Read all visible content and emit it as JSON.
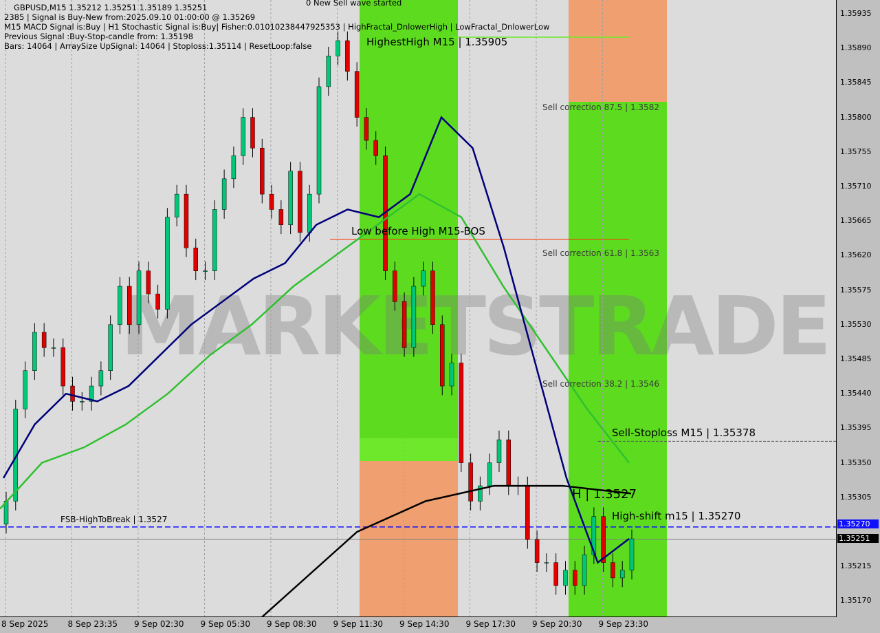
{
  "header": {
    "symbol_line": "GBPUSD,M15  1.35212 1.35251 1.35189 1.35251",
    "line2": "2385 | Signal is Buy-New from:2025.09.10 01:00:00 @ 1.35269",
    "line3": "M15 MACD Signal is:Buy | H1 Stochastic Signal is:Buy| Fisher:0.01010238447925353 | HighFractal_DnlowerHigh | LowFractal_DnlowerLow",
    "line4": "Previous Signal :Buy-Stop-candle from: 1.35198",
    "line5": "Bars: 14064 | ArraySize UpSignal: 14064 | Stoploss:1.35114 | ResetLoop:false",
    "top_note": "0 New Sell wave started"
  },
  "annotations": {
    "highest": "HighestHigh   M15 | 1.35905",
    "lbh": "Low before High   M15-BOS",
    "sc875": "Sell correction 87.5 | 1.3582",
    "sc618": "Sell correction 61.8 | 1.3563",
    "sc382": "Sell correction 38.2 | 1.3546",
    "stoploss": "Sell-Stoploss M15 | 1.35378",
    "highshift": "High-shift m15 | 1.35270",
    "fsb": "FSB-HighToBreak | 1.3527",
    "h": "H | 1.3527"
  },
  "watermark": "MARKETSTRADE",
  "colors": {
    "bull": "#00c878",
    "bear": "#e00000",
    "zone_green": "#5ddc1f",
    "zone_orange": "#f0a070",
    "ma_fast": "#00007a",
    "ma_mid": "#30c030",
    "ma_slow": "#000000"
  },
  "price_tags": {
    "line": "1.35270",
    "current": "1.35251"
  },
  "chart_data": {
    "type": "candlestick",
    "symbol": "GBPUSD",
    "timeframe": "M15",
    "ylim": [
      1.3515,
      1.3597
    ],
    "y_ticks": [
      "1.35935",
      "1.35890",
      "1.35845",
      "1.35800",
      "1.35755",
      "1.35710",
      "1.35665",
      "1.35620",
      "1.35575",
      "1.35530",
      "1.35485",
      "1.35440",
      "1.35395",
      "1.35350",
      "1.35305",
      "1.35215",
      "1.35170"
    ],
    "x_ticks": [
      "8 Sep 2025",
      "8 Sep 23:35",
      "9 Sep 02:30",
      "9 Sep 05:30",
      "9 Sep 08:30",
      "9 Sep 11:30",
      "9 Sep 14:30",
      "9 Sep 17:30",
      "9 Sep 20:30",
      "9 Sep 23:30"
    ],
    "closes": [
      1.353,
      1.3542,
      1.3547,
      1.3552,
      1.355,
      1.355,
      1.3545,
      1.3543,
      1.3543,
      1.3545,
      1.3547,
      1.3553,
      1.3558,
      1.3553,
      1.356,
      1.3557,
      1.3555,
      1.3567,
      1.357,
      1.3563,
      1.356,
      1.356,
      1.3568,
      1.3572,
      1.3575,
      1.358,
      1.3576,
      1.357,
      1.3568,
      1.3566,
      1.3573,
      1.3565,
      1.357,
      1.3584,
      1.3588,
      1.359,
      1.3586,
      1.358,
      1.3577,
      1.3575,
      1.356,
      1.3556,
      1.355,
      1.3558,
      1.356,
      1.3553,
      1.3545,
      1.3548,
      1.3535,
      1.353,
      1.3532,
      1.3535,
      1.3538,
      1.3532,
      1.3532,
      1.3525,
      1.3522,
      1.3522,
      1.3519,
      1.3521,
      1.3519,
      1.3523,
      1.3528,
      1.3522,
      1.352,
      1.3521,
      1.35251
    ],
    "ma_fast": [
      1.3533,
      1.354,
      1.3544,
      1.3543,
      1.3545,
      1.3549,
      1.3553,
      1.3556,
      1.3559,
      1.3561,
      1.3566,
      1.3568,
      1.3567,
      1.357,
      1.358,
      1.3576,
      1.3563,
      1.3548,
      1.3533,
      1.3522,
      1.35251
    ],
    "ma_mid": [
      1.3529,
      1.3535,
      1.3537,
      1.354,
      1.3544,
      1.3549,
      1.3553,
      1.3558,
      1.3562,
      1.3566,
      1.357,
      1.3567,
      1.3558,
      1.355,
      1.3542,
      1.3535
    ],
    "ma_slow": [
      1.351,
      1.3518,
      1.3526,
      1.353,
      1.3532,
      1.3532,
      1.3531
    ],
    "levels": {
      "fsb": 1.3527,
      "stoploss": 1.35378,
      "lbh": 1.3564,
      "highest": 1.35905,
      "current": 1.35251
    }
  }
}
